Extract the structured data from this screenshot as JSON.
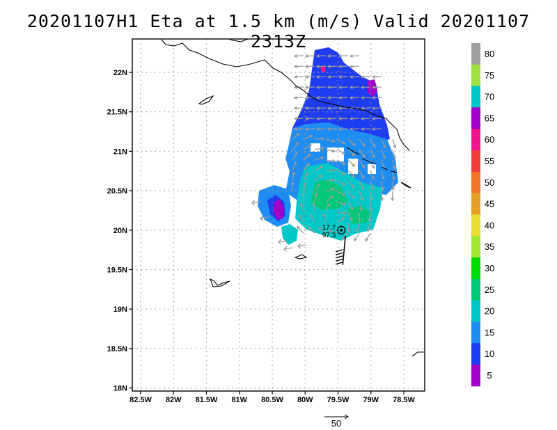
{
  "title": "20201107H1 Eta at 1.5 km (m/s) Valid 20201107  2313Z",
  "map": {
    "lon_ticks": [
      "82.5W",
      "82W",
      "81.5W",
      "81W",
      "80.5W",
      "80W",
      "79.5W",
      "79W",
      "78.5W"
    ],
    "lat_ticks": [
      "22N",
      "21.5N",
      "21N",
      "20.5N",
      "20N",
      "19.5N",
      "19N",
      "18.5N",
      "18N"
    ],
    "storm_center": {
      "lat": 20.0,
      "lon": -79.45,
      "pressure_label": "17.7",
      "wind_label": "97.3"
    },
    "reference_vector": {
      "label": "50",
      "value_ms": 50
    }
  },
  "colorbar": {
    "labels": [
      "80",
      "75",
      "70",
      "65",
      "60",
      "55",
      "50",
      "45",
      "40",
      "35",
      "30",
      "25",
      "20",
      "15",
      "10",
      "5"
    ],
    "colors": [
      "#a0a0a0",
      "#a0e040",
      "#00c8c8",
      "#a000c8",
      "#f0148c",
      "#f03c3c",
      "#f07828",
      "#e6a028",
      "#e6dc32",
      "#a0e632",
      "#00dc00",
      "#00c87a",
      "#00c8c8",
      "#1e8cf0",
      "#1e3cf0",
      "#a000c8"
    ]
  }
}
